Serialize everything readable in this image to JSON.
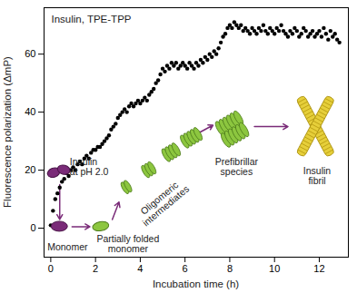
{
  "chart_data": {
    "type": "scatter",
    "title": "Insulin, TPE-TPP",
    "x_label": "Incubation time (h)",
    "y_label": "Fluorescence polarization (ΔmP)",
    "color": "#000000",
    "xlim": [
      -0.3,
      13.3
    ],
    "ylim": [
      -10,
      76
    ],
    "xticks": [
      0,
      2,
      4,
      6,
      8,
      10,
      12
    ],
    "yticks": [
      0,
      20,
      40,
      60
    ],
    "annotations": [
      "Insulin\nat pH 2.0",
      "Monomer",
      "Partially folded\nmonomer",
      "Oligomeric\nintermediates",
      "Prefibrillar\nspecies",
      "Insulin\nfibril"
    ],
    "x": [
      0,
      0.1,
      0.2,
      0.3,
      0.4,
      0.5,
      0.6,
      0.7,
      0.8,
      0.9,
      1,
      1.1,
      1.2,
      1.3,
      1.4,
      1.5,
      1.6,
      1.7,
      1.8,
      1.9,
      2,
      2.1,
      2.2,
      2.3,
      2.4,
      2.5,
      2.6,
      2.7,
      2.8,
      2.9,
      3,
      3.1,
      3.2,
      3.3,
      3.4,
      3.5,
      3.6,
      3.7,
      3.8,
      3.9,
      4,
      4.1,
      4.2,
      4.3,
      4.4,
      4.5,
      4.6,
      4.7,
      4.8,
      4.9,
      5,
      5.1,
      5.2,
      5.3,
      5.4,
      5.5,
      5.6,
      5.7,
      5.8,
      5.9,
      6,
      6.1,
      6.2,
      6.3,
      6.4,
      6.5,
      6.6,
      6.7,
      6.8,
      6.9,
      7,
      7.1,
      7.2,
      7.3,
      7.4,
      7.5,
      7.6,
      7.7,
      7.8,
      7.9,
      8,
      8.1,
      8.2,
      8.3,
      8.4,
      8.5,
      8.6,
      8.7,
      8.8,
      8.9,
      9,
      9.1,
      9.2,
      9.3,
      9.4,
      9.5,
      9.6,
      9.7,
      9.8,
      9.9,
      10,
      10.1,
      10.2,
      10.3,
      10.4,
      10.5,
      10.6,
      10.7,
      10.8,
      10.9,
      11,
      11.1,
      11.2,
      11.3,
      11.4,
      11.5,
      11.6,
      11.7,
      11.8,
      11.9,
      12,
      12.1,
      12.2,
      12.3,
      12.4,
      12.5,
      12.6,
      12.7,
      12.8,
      12.9
    ],
    "values": [
      1,
      6,
      10,
      12,
      14,
      16,
      17,
      19,
      18,
      20,
      21,
      20,
      22,
      23,
      22,
      24,
      25,
      24,
      26,
      27,
      27,
      28,
      28,
      29,
      30,
      31,
      32,
      34,
      35,
      36,
      38,
      39,
      40,
      41,
      40,
      42,
      43,
      42,
      43,
      44,
      43,
      44,
      45,
      44,
      46,
      47,
      48,
      50,
      51,
      53,
      55,
      54,
      56,
      55,
      57,
      56,
      57,
      55,
      56,
      57,
      56,
      55,
      57,
      56,
      55,
      57,
      56,
      58,
      57,
      59,
      58,
      60,
      59,
      61,
      60,
      62,
      64,
      66,
      67,
      69,
      70,
      69,
      71,
      70,
      69,
      70,
      68,
      69,
      68,
      67,
      69,
      68,
      67,
      69,
      68,
      70,
      68,
      67,
      69,
      68,
      67,
      69,
      68,
      70,
      68,
      67,
      66,
      68,
      67,
      69,
      68,
      66,
      67,
      69,
      68,
      66,
      67,
      68,
      66,
      67,
      68,
      66,
      69,
      67,
      65,
      68,
      66,
      67,
      65,
      64
    ]
  }
}
